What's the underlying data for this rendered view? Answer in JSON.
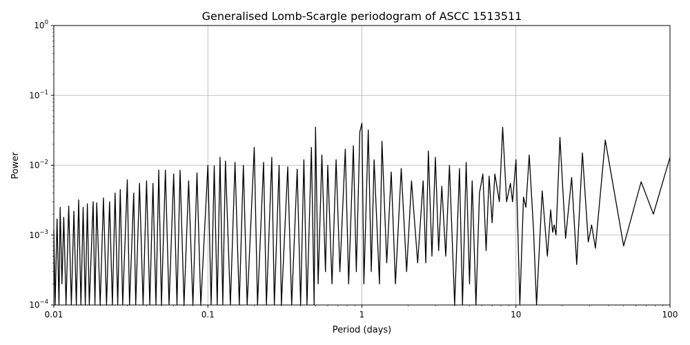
{
  "chart_data": {
    "type": "line",
    "title": "Generalised Lomb-Scargle periodogram of ASCC 1513511",
    "xlabel": "Period (days)",
    "ylabel": "Power",
    "xscale": "log",
    "yscale": "log",
    "xlim": [
      0.01,
      100
    ],
    "ylim": [
      0.0001,
      1
    ],
    "grid": true,
    "line_color": "#000000",
    "grid_color": "#b0b0b0",
    "x_ticks": [
      {
        "v": 0.01,
        "label": "0.01"
      },
      {
        "v": 0.1,
        "label": "0.1"
      },
      {
        "v": 1,
        "label": "1"
      },
      {
        "v": 10,
        "label": "10"
      },
      {
        "v": 100,
        "label": "100"
      }
    ],
    "y_ticks": [
      {
        "v": 0.0001,
        "base": "10",
        "exp": "−4"
      },
      {
        "v": 0.001,
        "base": "10",
        "exp": "−3"
      },
      {
        "v": 0.01,
        "base": "10",
        "exp": "−2"
      },
      {
        "v": 0.1,
        "base": "10",
        "exp": "−1"
      },
      {
        "v": 1,
        "base": "10",
        "exp": "0"
      }
    ],
    "series": [
      {
        "points": [
          [
            0.01,
            0.0012
          ],
          [
            0.0102,
            0.0001
          ],
          [
            0.0105,
            0.0017
          ],
          [
            0.0108,
            0.0001
          ],
          [
            0.011,
            0.0025
          ],
          [
            0.0113,
            0.0002
          ],
          [
            0.0116,
            0.0018
          ],
          [
            0.012,
            0.0001
          ],
          [
            0.0125,
            0.0026
          ],
          [
            0.013,
            0.0001
          ],
          [
            0.0135,
            0.0022
          ],
          [
            0.014,
            0.0001
          ],
          [
            0.0145,
            0.0032
          ],
          [
            0.015,
            0.0001
          ],
          [
            0.0155,
            0.0025
          ],
          [
            0.016,
            0.0001
          ],
          [
            0.0165,
            0.0028
          ],
          [
            0.017,
            0.0001
          ],
          [
            0.018,
            0.003
          ],
          [
            0.0185,
            0.0001
          ],
          [
            0.019,
            0.0029
          ],
          [
            0.02,
            0.0001
          ],
          [
            0.021,
            0.0034
          ],
          [
            0.022,
            0.0001
          ],
          [
            0.023,
            0.003
          ],
          [
            0.024,
            0.0001
          ],
          [
            0.025,
            0.004
          ],
          [
            0.026,
            0.0001
          ],
          [
            0.027,
            0.0045
          ],
          [
            0.028,
            0.0001
          ],
          [
            0.03,
            0.0062
          ],
          [
            0.031,
            0.0001
          ],
          [
            0.033,
            0.004
          ],
          [
            0.034,
            0.0001
          ],
          [
            0.036,
            0.0055
          ],
          [
            0.038,
            0.0001
          ],
          [
            0.04,
            0.006
          ],
          [
            0.042,
            0.0001
          ],
          [
            0.044,
            0.0055
          ],
          [
            0.046,
            0.0001
          ],
          [
            0.048,
            0.0085
          ],
          [
            0.05,
            0.0001
          ],
          [
            0.053,
            0.0085
          ],
          [
            0.056,
            0.0001
          ],
          [
            0.06,
            0.0075
          ],
          [
            0.063,
            0.0001
          ],
          [
            0.066,
            0.0085
          ],
          [
            0.07,
            0.0001
          ],
          [
            0.075,
            0.006
          ],
          [
            0.08,
            0.0001
          ],
          [
            0.085,
            0.0078
          ],
          [
            0.09,
            0.0001
          ],
          [
            0.1,
            0.01
          ],
          [
            0.105,
            0.0001
          ],
          [
            0.11,
            0.0098
          ],
          [
            0.115,
            0.0001
          ],
          [
            0.12,
            0.013
          ],
          [
            0.125,
            0.0001
          ],
          [
            0.13,
            0.0115
          ],
          [
            0.14,
            0.0001
          ],
          [
            0.15,
            0.011
          ],
          [
            0.16,
            0.0001
          ],
          [
            0.17,
            0.01
          ],
          [
            0.18,
            0.0001
          ],
          [
            0.2,
            0.018
          ],
          [
            0.21,
            0.0001
          ],
          [
            0.23,
            0.011
          ],
          [
            0.24,
            0.0001
          ],
          [
            0.26,
            0.013
          ],
          [
            0.27,
            0.0001
          ],
          [
            0.29,
            0.01
          ],
          [
            0.3,
            0.0001
          ],
          [
            0.33,
            0.0095
          ],
          [
            0.35,
            0.0001
          ],
          [
            0.38,
            0.0088
          ],
          [
            0.4,
            0.0001
          ],
          [
            0.42,
            0.012
          ],
          [
            0.44,
            0.0001
          ],
          [
            0.47,
            0.018
          ],
          [
            0.49,
            0.0001
          ],
          [
            0.5,
            0.035
          ],
          [
            0.52,
            0.0002
          ],
          [
            0.55,
            0.014
          ],
          [
            0.58,
            0.0003
          ],
          [
            0.6,
            0.01
          ],
          [
            0.64,
            0.0002
          ],
          [
            0.68,
            0.012
          ],
          [
            0.72,
            0.0003
          ],
          [
            0.78,
            0.017
          ],
          [
            0.82,
            0.0002
          ],
          [
            0.88,
            0.019
          ],
          [
            0.92,
            0.0003
          ],
          [
            0.97,
            0.03
          ],
          [
            1.0,
            0.04
          ],
          [
            1.03,
            0.0002
          ],
          [
            1.1,
            0.032
          ],
          [
            1.15,
            0.0003
          ],
          [
            1.2,
            0.012
          ],
          [
            1.3,
            0.0002
          ],
          [
            1.35,
            0.022
          ],
          [
            1.45,
            0.0004
          ],
          [
            1.55,
            0.008
          ],
          [
            1.65,
            0.0002
          ],
          [
            1.8,
            0.009
          ],
          [
            1.95,
            0.0003
          ],
          [
            2.1,
            0.006
          ],
          [
            2.3,
            0.0004
          ],
          [
            2.5,
            0.006
          ],
          [
            2.6,
            0.0004
          ],
          [
            2.7,
            0.016
          ],
          [
            2.85,
            0.0005
          ],
          [
            3.0,
            0.013
          ],
          [
            3.15,
            0.0006
          ],
          [
            3.3,
            0.005
          ],
          [
            3.5,
            0.0005
          ],
          [
            3.7,
            0.01
          ],
          [
            4.0,
            0.0001
          ],
          [
            4.3,
            0.009
          ],
          [
            4.5,
            0.0001
          ],
          [
            4.75,
            0.011
          ],
          [
            5.0,
            0.0002
          ],
          [
            5.2,
            0.006
          ],
          [
            5.5,
            0.0001
          ],
          [
            5.8,
            0.004
          ],
          [
            6.1,
            0.0075
          ],
          [
            6.4,
            0.0006
          ],
          [
            6.7,
            0.007
          ],
          [
            7.0,
            0.0015
          ],
          [
            7.3,
            0.0075
          ],
          [
            7.8,
            0.003
          ],
          [
            8.2,
            0.035
          ],
          [
            8.7,
            0.003
          ],
          [
            9.2,
            0.0055
          ],
          [
            9.5,
            0.003
          ],
          [
            10.0,
            0.012
          ],
          [
            10.6,
            0.0001
          ],
          [
            11.2,
            0.0035
          ],
          [
            11.6,
            0.0025
          ],
          [
            12.2,
            0.014
          ],
          [
            13.0,
            0.0012
          ],
          [
            13.6,
            0.0001
          ],
          [
            14.8,
            0.0043
          ],
          [
            16.0,
            0.0005
          ],
          [
            16.8,
            0.0023
          ],
          [
            17.3,
            0.0011
          ],
          [
            17.7,
            0.0014
          ],
          [
            18.2,
            0.001
          ],
          [
            19.3,
            0.025
          ],
          [
            21.0,
            0.0009
          ],
          [
            23.0,
            0.0067
          ],
          [
            24.8,
            0.00038
          ],
          [
            27.0,
            0.015
          ],
          [
            29.5,
            0.0008
          ],
          [
            31.0,
            0.0014
          ],
          [
            32.8,
            0.00065
          ],
          [
            38.0,
            0.023
          ],
          [
            50.0,
            0.0007
          ],
          [
            65.0,
            0.0058
          ],
          [
            78.0,
            0.002
          ],
          [
            100,
            0.013
          ]
        ]
      }
    ]
  }
}
